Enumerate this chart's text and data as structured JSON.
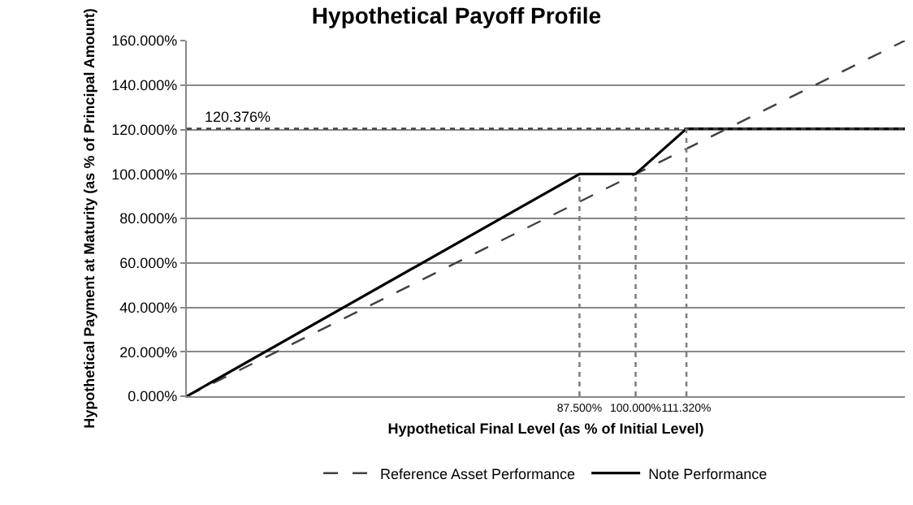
{
  "chart_data": {
    "type": "line",
    "title": "Hypothetical Payoff Profile",
    "xlabel": "Hypothetical Final Level (as % of Initial Level)",
    "ylabel": "Hypothetical Payment at Maturity (as % of Principal Amount)",
    "series": [
      {
        "name": "Reference Asset Performance",
        "color": "#404040",
        "line_style": "dashed",
        "x": [
          0,
          160
        ],
        "values": [
          0,
          160
        ]
      },
      {
        "name": "Note Performance",
        "color": "#000000",
        "line_style": "solid",
        "x": [
          0,
          87.5,
          100,
          111.32,
          160
        ],
        "values": [
          0,
          100,
          100,
          120.376,
          120.376
        ]
      }
    ],
    "xlim": [
      0,
      160
    ],
    "xticks": [
      {
        "value": 87.5,
        "label": "87.500%"
      },
      {
        "value": 100,
        "label": "100.000%"
      },
      {
        "value": 111.32,
        "label": "111.320%"
      }
    ],
    "ylim": [
      0,
      160
    ],
    "yticks": [
      {
        "value": 0,
        "label": "0.000%"
      },
      {
        "value": 20,
        "label": "20.000%"
      },
      {
        "value": 40,
        "label": "40.000%"
      },
      {
        "value": 60,
        "label": "60.000%"
      },
      {
        "value": 80,
        "label": "80.000%"
      },
      {
        "value": 100,
        "label": "100.000%"
      },
      {
        "value": 120,
        "label": "120.000%"
      },
      {
        "value": 140,
        "label": "140.000%"
      },
      {
        "value": 160,
        "label": "160.000%"
      }
    ],
    "ref_lines": [
      {
        "axis": "y",
        "value": 120.376,
        "label": "120.376%",
        "line_style": "dotted",
        "color": "#404040"
      },
      {
        "axis": "x",
        "value": 87.5,
        "line_style": "dotted",
        "color": "#808080"
      },
      {
        "axis": "x",
        "value": 100,
        "line_style": "dotted",
        "color": "#808080"
      },
      {
        "axis": "x",
        "value": 111.32,
        "line_style": "dotted",
        "color": "#808080"
      }
    ],
    "grid": "y",
    "legend": "bottom",
    "marker": "none"
  }
}
